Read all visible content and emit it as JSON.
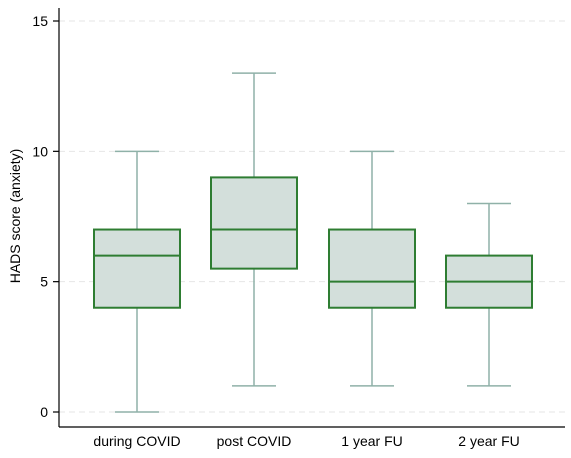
{
  "chart_data": {
    "type": "boxplot",
    "title": "",
    "xlabel": "",
    "ylabel": "HADS score (anxiety)",
    "ylim": [
      0,
      15
    ],
    "yticks": [
      0,
      5,
      10,
      15
    ],
    "grid": true,
    "categories": [
      "during COVID",
      "post COVID",
      "1 year FU",
      "2 year FU"
    ],
    "boxes": [
      {
        "category": "during COVID",
        "whisker_low": 0,
        "q1": 4,
        "median": 6,
        "q3": 7,
        "whisker_high": 10
      },
      {
        "category": "post COVID",
        "whisker_low": 1,
        "q1": 5.5,
        "median": 7,
        "q3": 9,
        "whisker_high": 13
      },
      {
        "category": "1 year FU",
        "whisker_low": 1,
        "q1": 4,
        "median": 5,
        "q3": 7,
        "whisker_high": 10
      },
      {
        "category": "2 year FU",
        "whisker_low": 1,
        "q1": 4,
        "median": 5,
        "q3": 6,
        "whisker_high": 8
      }
    ],
    "colors": {
      "box_fill": "#d3dfdb",
      "box_edge": "#2e7d32",
      "whisker": "#8fb1a8",
      "grid": "#e6e6e6",
      "axis": "#000000"
    }
  }
}
